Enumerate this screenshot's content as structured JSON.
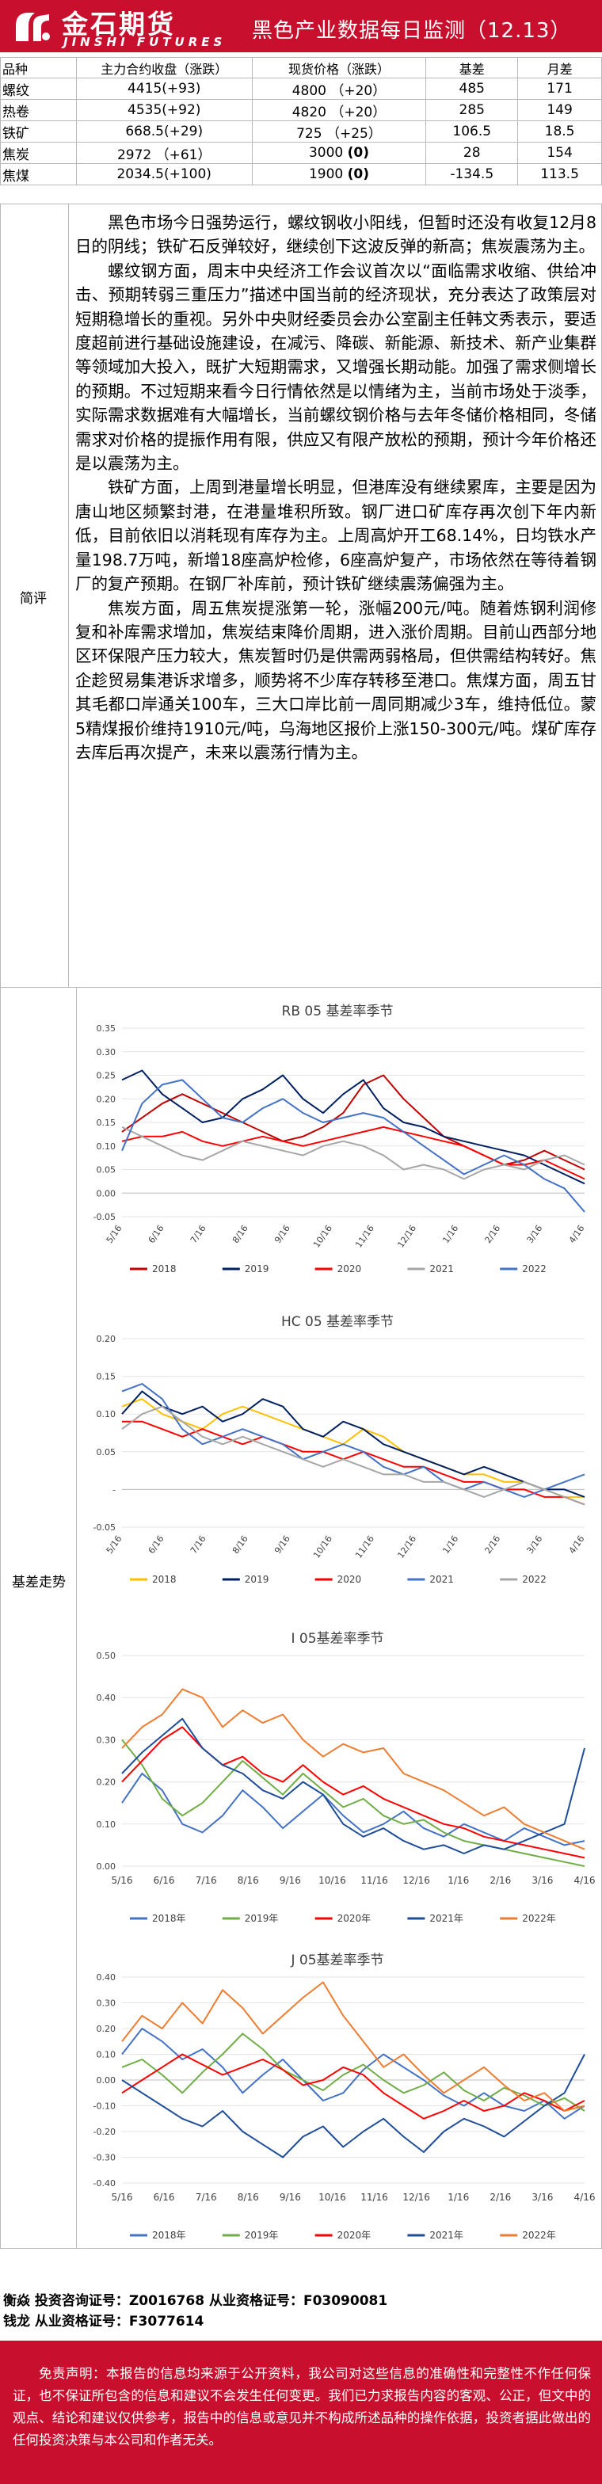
{
  "header": {
    "logo_cn": "金石期货",
    "logo_en": "JINSHI FUTURES",
    "title": "黑色产业数据每日监测（12.13）"
  },
  "table": {
    "headers": [
      "品种",
      "主力合约收盘（涨跌）",
      "现货价格（涨跌）",
      "基差",
      "月差"
    ],
    "rows": [
      {
        "name": "螺纹",
        "futures": "4415(+93)",
        "spot_price": "4800",
        "spot_change": "（+20）",
        "spot_change_bold": false,
        "basis": "485",
        "spread": "171"
      },
      {
        "name": "热卷",
        "futures": "4535(+92)",
        "spot_price": "4820",
        "spot_change": "（+20）",
        "spot_change_bold": false,
        "basis": "285",
        "spread": "149"
      },
      {
        "name": "铁矿",
        "futures": "668.5(+29)",
        "spot_price": "725",
        "spot_change": "（+25）",
        "spot_change_bold": false,
        "basis": "106.5",
        "spread": "18.5"
      },
      {
        "name": "焦炭",
        "futures": "2972 （+61）",
        "spot_price": "3000",
        "spot_change": "(0)",
        "spot_change_bold": true,
        "basis": "28",
        "spread": "154"
      },
      {
        "name": "焦煤",
        "futures": "2034.5(+100)",
        "spot_price": "1900",
        "spot_change": "(0)",
        "spot_change_bold": true,
        "basis": "-134.5",
        "spread": "113.5"
      }
    ]
  },
  "commentary": {
    "label": "简评",
    "paragraphs": [
      "黑色市场今日强势运行，螺纹钢收小阳线，但暂时还没有收复12月8日的阴线；铁矿石反弹较好，继续创下这波反弹的新高；焦炭震荡为主。",
      "螺纹钢方面，周末中央经济工作会议首次以“面临需求收缩、供给冲击、预期转弱三重压力”描述中国当前的经济现状，充分表达了政策层对短期稳增长的重视。另外中央财经委员会办公室副主任韩文秀表示，要适度超前进行基础设施建设，在减污、降碳、新能源、新技术、新产业集群等领域加大投入，既扩大短期需求，又增强长期动能。加强了需求侧增长的预期。不过短期来看今日行情依然是以情绪为主，当前市场处于淡季，实际需求数据难有大幅增长，当前螺纹钢价格与去年冬储价格相同，冬储需求对价格的提振作用有限，供应又有限产放松的预期，预计今年价格还是以震荡为主。",
      "铁矿方面，上周到港量增长明显，但港库没有继续累库，主要是因为唐山地区频繁封港，在港量堆积所致。钢厂进口矿库存再次创下年内新低，目前依旧以消耗现有库存为主。上周高炉开工68.14%，日均铁水产量198.7万吨，新增18座高炉检修，6座高炉复产，市场依然在等待着钢厂的复产预期。在钢厂补库前，预计铁矿继续震荡偏强为主。",
      "焦炭方面，周五焦炭提涨第一轮，涨幅200元/吨。随着炼钢利润修复和补库需求增加，焦炭结束降价周期，进入涨价周期。目前山西部分地区环保限产压力较大，焦炭暂时仍是供需两弱格局，但供需结构转好。焦企趁贸易集港诉求增多，顺势将不少库存转移至港口。焦煤方面，周五甘其毛都口岸通关100车，三大口岸比前一周同期减少3车，维持低位。蒙5精煤报价维持1910元/吨，乌海地区报价上涨150-300元/吨。煤矿库存去库后再次提产，未来以震荡行情为主。"
    ]
  },
  "charts_label": "基差走势",
  "chart_data": [
    {
      "type": "line",
      "title": "RB 05 基差率季节",
      "x": [
        "5/16",
        "5/31",
        "6/15",
        "6/30",
        "7/15",
        "7/30",
        "8/14",
        "8/29",
        "9/13",
        "9/28",
        "10/13",
        "10/28",
        "11/12",
        "11/27",
        "12/12",
        "12/27",
        "1/11",
        "1/26",
        "2/10",
        "2/25",
        "3/12",
        "3/27",
        "4/11",
        "4/26"
      ],
      "xticks": [
        "5/16",
        "6/16",
        "7/16",
        "8/16",
        "9/16",
        "10/16",
        "11/16",
        "12/16",
        "1/16",
        "2/16",
        "3/16",
        "4/16"
      ],
      "ylim": [
        -0.05,
        0.35
      ],
      "yticks": [
        "0.35",
        "0.30",
        "0.25",
        "0.20",
        "0.15",
        "0.10",
        "0.05",
        "0.00",
        "-0.05"
      ],
      "legend_position": "bottom",
      "series": [
        {
          "name": "2018",
          "color": "#c00000",
          "values": [
            0.13,
            0.16,
            0.19,
            0.21,
            0.19,
            0.17,
            0.15,
            0.13,
            0.11,
            0.12,
            0.14,
            0.17,
            0.23,
            0.25,
            0.2,
            0.16,
            0.12,
            0.1,
            0.08,
            0.06,
            0.07,
            0.09,
            0.07,
            0.05
          ]
        },
        {
          "name": "2019",
          "color": "#002060",
          "values": [
            0.24,
            0.26,
            0.21,
            0.18,
            0.15,
            0.16,
            0.2,
            0.22,
            0.25,
            0.2,
            0.17,
            0.21,
            0.24,
            0.18,
            0.15,
            0.14,
            0.12,
            0.11,
            0.1,
            0.09,
            0.08,
            0.06,
            0.04,
            0.02
          ]
        },
        {
          "name": "2020",
          "color": "#ff0000",
          "values": [
            0.11,
            0.12,
            0.12,
            0.13,
            0.11,
            0.1,
            0.11,
            0.12,
            0.11,
            0.1,
            0.11,
            0.12,
            0.13,
            0.14,
            0.13,
            0.12,
            0.11,
            0.1,
            0.08,
            0.06,
            0.06,
            0.07,
            0.05,
            0.03
          ]
        },
        {
          "name": "2021",
          "color": "#a6a6a6",
          "values": [
            0.14,
            0.12,
            0.1,
            0.08,
            0.07,
            0.09,
            0.11,
            0.1,
            0.09,
            0.08,
            0.1,
            0.11,
            0.1,
            0.08,
            0.05,
            0.06,
            0.05,
            0.03,
            0.05,
            0.06,
            0.05,
            0.07,
            0.08,
            0.06
          ]
        },
        {
          "name": "2022",
          "color": "#4472c4",
          "values": [
            0.09,
            0.19,
            0.23,
            0.24,
            0.2,
            0.16,
            0.15,
            0.18,
            0.2,
            0.17,
            0.15,
            0.16,
            0.17,
            0.16,
            0.13,
            0.1,
            0.07,
            0.04,
            0.06,
            0.08,
            0.06,
            0.03,
            0.01,
            -0.04
          ]
        }
      ]
    },
    {
      "type": "line",
      "title": "HC 05 基差率季节",
      "x": [
        "5/16",
        "5/31",
        "6/15",
        "6/30",
        "7/15",
        "7/30",
        "8/14",
        "8/29",
        "9/13",
        "9/28",
        "10/13",
        "10/28",
        "11/12",
        "11/27",
        "12/12",
        "12/27",
        "1/11",
        "1/26",
        "2/10",
        "2/25",
        "3/12",
        "3/27",
        "4/11",
        "4/26"
      ],
      "xticks": [
        "5/16",
        "6/16",
        "7/16",
        "8/16",
        "9/16",
        "10/16",
        "11/16",
        "12/16",
        "1/16",
        "2/16",
        "3/16",
        "4/16"
      ],
      "ylim": [
        -0.05,
        0.2
      ],
      "yticks": [
        "0.20",
        "0.15",
        "0.10",
        "0.05",
        "-",
        "-0.05"
      ],
      "legend_position": "bottom",
      "series": [
        {
          "name": "2018",
          "color": "#ffc000",
          "values": [
            0.11,
            0.12,
            0.1,
            0.09,
            0.08,
            0.1,
            0.11,
            0.1,
            0.09,
            0.08,
            0.07,
            0.06,
            0.08,
            0.07,
            0.05,
            0.04,
            0.03,
            0.02,
            0.02,
            0.01,
            0.01,
            0.0,
            -0.01,
            -0.01
          ]
        },
        {
          "name": "2019",
          "color": "#002060",
          "values": [
            0.1,
            0.13,
            0.11,
            0.1,
            0.11,
            0.09,
            0.1,
            0.12,
            0.11,
            0.08,
            0.07,
            0.09,
            0.08,
            0.06,
            0.05,
            0.04,
            0.03,
            0.02,
            0.03,
            0.02,
            0.01,
            0.0,
            0.0,
            -0.01
          ]
        },
        {
          "name": "2020",
          "color": "#ff0000",
          "values": [
            0.09,
            0.09,
            0.08,
            0.07,
            0.08,
            0.07,
            0.06,
            0.07,
            0.06,
            0.05,
            0.05,
            0.04,
            0.05,
            0.04,
            0.03,
            0.03,
            0.02,
            0.01,
            0.01,
            0.0,
            0.0,
            -0.01,
            -0.01,
            -0.02
          ]
        },
        {
          "name": "2021",
          "color": "#4472c4",
          "values": [
            0.13,
            0.14,
            0.12,
            0.08,
            0.06,
            0.07,
            0.08,
            0.07,
            0.06,
            0.04,
            0.05,
            0.06,
            0.05,
            0.03,
            0.02,
            0.03,
            0.01,
            0.0,
            0.01,
            0.0,
            -0.01,
            0.0,
            0.01,
            0.02
          ]
        },
        {
          "name": "2022",
          "color": "#a6a6a6",
          "values": [
            0.08,
            0.1,
            0.11,
            0.09,
            0.07,
            0.06,
            0.07,
            0.06,
            0.05,
            0.04,
            0.03,
            0.04,
            0.03,
            0.02,
            0.02,
            0.01,
            0.01,
            0.0,
            -0.01,
            0.0,
            0.01,
            0.0,
            -0.01,
            -0.02
          ]
        }
      ]
    },
    {
      "type": "line",
      "title": "I 05基差率季节",
      "x": [
        "5/16",
        "5/31",
        "6/15",
        "6/30",
        "7/15",
        "7/30",
        "8/14",
        "8/29",
        "9/13",
        "9/28",
        "10/13",
        "10/28",
        "11/12",
        "11/27",
        "12/12",
        "12/27",
        "1/11",
        "1/26",
        "2/10",
        "2/25",
        "3/12",
        "3/27",
        "4/11",
        "4/26"
      ],
      "xticks": [
        "5/16",
        "6/16",
        "7/16",
        "8/16",
        "9/16",
        "10/16",
        "11/16",
        "12/16",
        "1/16",
        "2/16",
        "3/16",
        "4/16"
      ],
      "ylim": [
        0.0,
        0.5
      ],
      "yticks": [
        "0.50",
        "0.40",
        "0.30",
        "0.20",
        "0.10",
        "0.00"
      ],
      "legend_position": "bottom",
      "series": [
        {
          "name": "2018年",
          "color": "#4472c4",
          "values": [
            0.15,
            0.22,
            0.18,
            0.1,
            0.08,
            0.12,
            0.18,
            0.14,
            0.09,
            0.13,
            0.17,
            0.12,
            0.08,
            0.1,
            0.13,
            0.09,
            0.07,
            0.1,
            0.08,
            0.06,
            0.09,
            0.07,
            0.05,
            0.06
          ]
        },
        {
          "name": "2019年",
          "color": "#70ad47",
          "values": [
            0.3,
            0.24,
            0.16,
            0.12,
            0.15,
            0.2,
            0.25,
            0.21,
            0.17,
            0.22,
            0.18,
            0.14,
            0.16,
            0.12,
            0.1,
            0.11,
            0.08,
            0.06,
            0.05,
            0.04,
            0.03,
            0.02,
            0.01,
            0.0
          ]
        },
        {
          "name": "2020年",
          "color": "#ff0000",
          "values": [
            0.2,
            0.25,
            0.3,
            0.33,
            0.28,
            0.24,
            0.26,
            0.22,
            0.2,
            0.24,
            0.2,
            0.17,
            0.19,
            0.16,
            0.14,
            0.12,
            0.1,
            0.09,
            0.07,
            0.06,
            0.05,
            0.04,
            0.03,
            0.02
          ]
        },
        {
          "name": "2021年",
          "color": "#1f4e99",
          "values": [
            0.22,
            0.27,
            0.31,
            0.35,
            0.28,
            0.24,
            0.22,
            0.18,
            0.16,
            0.2,
            0.17,
            0.1,
            0.07,
            0.09,
            0.06,
            0.04,
            0.05,
            0.03,
            0.05,
            0.04,
            0.06,
            0.08,
            0.1,
            0.28
          ]
        },
        {
          "name": "2022年",
          "color": "#ed7d31",
          "values": [
            0.28,
            0.33,
            0.36,
            0.42,
            0.4,
            0.33,
            0.37,
            0.34,
            0.36,
            0.3,
            0.26,
            0.29,
            0.27,
            0.28,
            0.22,
            0.2,
            0.18,
            0.15,
            0.12,
            0.14,
            0.1,
            0.08,
            0.06,
            0.04
          ]
        }
      ]
    },
    {
      "type": "line",
      "title": "J 05基差率季节",
      "x": [
        "5/16",
        "5/31",
        "6/15",
        "6/30",
        "7/15",
        "7/30",
        "8/14",
        "8/29",
        "9/13",
        "9/28",
        "10/13",
        "10/28",
        "11/12",
        "11/27",
        "12/12",
        "12/27",
        "1/11",
        "1/26",
        "2/10",
        "2/25",
        "3/12",
        "3/27",
        "4/11",
        "4/26"
      ],
      "xticks": [
        "5/16",
        "6/16",
        "7/16",
        "8/16",
        "9/16",
        "10/16",
        "11/16",
        "12/16",
        "1/16",
        "2/16",
        "3/16",
        "4/16"
      ],
      "ylim": [
        -0.4,
        0.4
      ],
      "yticks": [
        "0.40",
        "0.30",
        "0.20",
        "0.10",
        "0.00",
        "-0.10",
        "-0.20",
        "-0.30",
        "-0.40"
      ],
      "legend_position": "bottom",
      "series": [
        {
          "name": "2018年",
          "color": "#4472c4",
          "values": [
            0.1,
            0.2,
            0.15,
            0.08,
            0.12,
            0.05,
            -0.05,
            0.02,
            0.08,
            0.0,
            -0.08,
            -0.05,
            0.04,
            0.1,
            0.05,
            0.0,
            -0.06,
            -0.1,
            -0.05,
            -0.1,
            -0.12,
            -0.08,
            -0.15,
            -0.1
          ]
        },
        {
          "name": "2019年",
          "color": "#70ad47",
          "values": [
            0.05,
            0.08,
            0.02,
            -0.05,
            0.03,
            0.1,
            0.18,
            0.12,
            0.04,
            0.0,
            -0.04,
            0.02,
            0.06,
            0.0,
            -0.05,
            -0.02,
            0.03,
            -0.04,
            -0.08,
            -0.03,
            -0.06,
            -0.1,
            -0.07,
            -0.12
          ]
        },
        {
          "name": "2020年",
          "color": "#ff0000",
          "values": [
            -0.05,
            0.0,
            0.05,
            0.1,
            0.06,
            0.02,
            0.05,
            0.08,
            0.04,
            -0.02,
            0.0,
            0.05,
            0.02,
            -0.05,
            -0.1,
            -0.15,
            -0.12,
            -0.08,
            -0.12,
            -0.1,
            -0.05,
            -0.08,
            -0.12,
            -0.08
          ]
        },
        {
          "name": "2021年",
          "color": "#1f4e99",
          "values": [
            0.0,
            -0.05,
            -0.1,
            -0.15,
            -0.18,
            -0.12,
            -0.2,
            -0.25,
            -0.3,
            -0.22,
            -0.18,
            -0.26,
            -0.2,
            -0.15,
            -0.22,
            -0.28,
            -0.2,
            -0.15,
            -0.18,
            -0.22,
            -0.16,
            -0.1,
            -0.05,
            0.1
          ]
        },
        {
          "name": "2022年",
          "color": "#ed7d31",
          "values": [
            0.15,
            0.25,
            0.2,
            0.3,
            0.22,
            0.35,
            0.28,
            0.18,
            0.25,
            0.32,
            0.38,
            0.25,
            0.15,
            0.05,
            0.1,
            0.02,
            -0.05,
            0.0,
            0.05,
            -0.02,
            -0.08,
            -0.05,
            -0.12,
            -0.1
          ]
        }
      ]
    }
  ],
  "contact": {
    "line1": "衡焱 投资咨询证号：Z0016768 从业资格证号：F03090081",
    "line2": "钱龙 从业资格证号：F3077614"
  },
  "disclaimer": "免责声明：本报告的信息均来源于公开资料，我公司对这些信息的准确性和完整性不作任何保证，也不保证所包含的信息和建议不会发生任何变更。我们已力求报告内容的客观、公正，但文中的观点、结论和建议仅供参考，报告中的信息或意见并不构成所述品种的操作依据，投资者据此做出的任何投资决策与本公司和作者无关。"
}
